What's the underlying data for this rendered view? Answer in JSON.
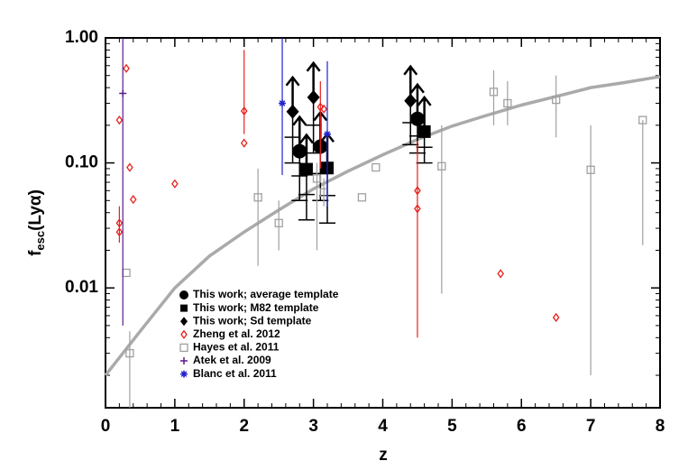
{
  "chart_data": {
    "type": "scatter",
    "x_label": "z",
    "y_label": "f",
    "y_label_sub": "esc",
    "y_label_rest": "(Lyα)",
    "xlim": [
      0,
      8
    ],
    "ylim": [
      0.0011,
      1
    ],
    "xticks": [
      0,
      1,
      2,
      3,
      4,
      5,
      6,
      7,
      8
    ],
    "yticks": [
      {
        "value": 0.01,
        "label": "0.01"
      },
      {
        "value": 0.1,
        "label": "0.10"
      },
      {
        "value": 1,
        "label": "1.00"
      }
    ],
    "y_log": true,
    "legend": "lower left",
    "curve": {
      "color": "#aaaaaa",
      "x": [
        0,
        0.5,
        1,
        1.5,
        2,
        2.5,
        3,
        3.5,
        4,
        4.5,
        5,
        5.5,
        6,
        6.5,
        7,
        7.5,
        8
      ],
      "values": [
        0.002,
        0.0045,
        0.01,
        0.018,
        0.028,
        0.042,
        0.062,
        0.086,
        0.116,
        0.154,
        0.197,
        0.24,
        0.29,
        0.34,
        0.4,
        0.44,
        0.49
      ]
    },
    "series": [
      {
        "name": "This work; average template",
        "color": "#000000",
        "marker": "circle",
        "lower_limit": true,
        "x": [
          2.8,
          3.1,
          4.5
        ],
        "values": [
          0.124,
          0.135,
          0.225
        ],
        "lower": [
          0.05,
          0.05,
          0.12
        ],
        "upper": [
          null,
          null,
          null
        ]
      },
      {
        "name": "This work; M82 template",
        "color": "#000000",
        "marker": "square",
        "lower_limit": true,
        "x": [
          2.9,
          3.2,
          4.6
        ],
        "values": [
          0.089,
          0.091,
          0.178
        ],
        "lower": [
          0.035,
          0.033,
          0.1
        ],
        "upper": [
          null,
          null,
          null
        ]
      },
      {
        "name": "This work; Sd template",
        "color": "#000000",
        "marker": "diamond",
        "lower_limit": true,
        "x": [
          2.7,
          3.0,
          4.4
        ],
        "values": [
          0.257,
          0.335,
          0.314
        ],
        "lower": [
          0.1,
          0.12,
          0.14
        ],
        "upper": [
          null,
          null,
          null
        ]
      },
      {
        "name": "Zheng et al. 2012",
        "color": "#e8201c",
        "marker": "open-diamond",
        "lower_limit": false,
        "x": [
          0.2,
          0.2,
          0.3,
          0.2,
          0.35,
          0.4,
          1.0,
          2.0,
          2.0,
          3.1,
          3.15,
          4.5,
          4.5,
          5.7,
          6.5
        ],
        "values": [
          0.033,
          0.028,
          0.57,
          0.22,
          0.092,
          0.051,
          0.068,
          0.26,
          0.144,
          0.28,
          0.27,
          0.06,
          0.043,
          0.013,
          0.0058
        ],
        "lower": [
          0.023,
          null,
          null,
          null,
          null,
          null,
          null,
          0.17,
          null,
          0.09,
          null,
          0.004,
          null,
          null,
          null
        ],
        "upper": [
          0.045,
          null,
          null,
          null,
          null,
          null,
          null,
          0.8,
          null,
          0.45,
          null,
          0.15,
          null,
          null,
          null
        ]
      },
      {
        "name": "Hayes et al. 2011",
        "color": "#a0a0a0",
        "marker": "open-square",
        "lower_limit": false,
        "x": [
          0.3,
          0.35,
          2.2,
          2.5,
          3.05,
          3.15,
          3.7,
          3.9,
          4.85,
          5.6,
          5.8,
          6.5,
          7.0,
          7.75
        ],
        "values": [
          0.0132,
          0.003,
          0.053,
          0.033,
          0.075,
          0.058,
          0.053,
          0.092,
          0.094,
          0.37,
          0.3,
          0.32,
          0.088,
          0.22
        ],
        "lower": [
          null,
          0.0011,
          0.015,
          0.02,
          0.02,
          0.045,
          null,
          null,
          0.009,
          0.2,
          0.2,
          0.16,
          0.002,
          0.022
        ],
        "upper": [
          null,
          0.0045,
          0.09,
          0.05,
          0.1,
          0.075,
          null,
          null,
          0.2,
          0.55,
          0.45,
          0.5,
          0.2,
          null
        ]
      },
      {
        "name": "Atek et al. 2009",
        "color": "#5b1a8c",
        "marker": "plus",
        "lower_limit": false,
        "x": [
          0.25
        ],
        "values": [
          0.36
        ],
        "lower": [
          0.005
        ],
        "upper": [
          1.0
        ]
      },
      {
        "name": "Blanc et al. 2011",
        "color": "#2222cc",
        "marker": "asterisk",
        "lower_limit": false,
        "x": [
          2.55,
          3.2
        ],
        "values": [
          0.3,
          0.17
        ],
        "lower": [
          0.08,
          0.045
        ],
        "upper": [
          1.0,
          0.65
        ]
      }
    ]
  }
}
